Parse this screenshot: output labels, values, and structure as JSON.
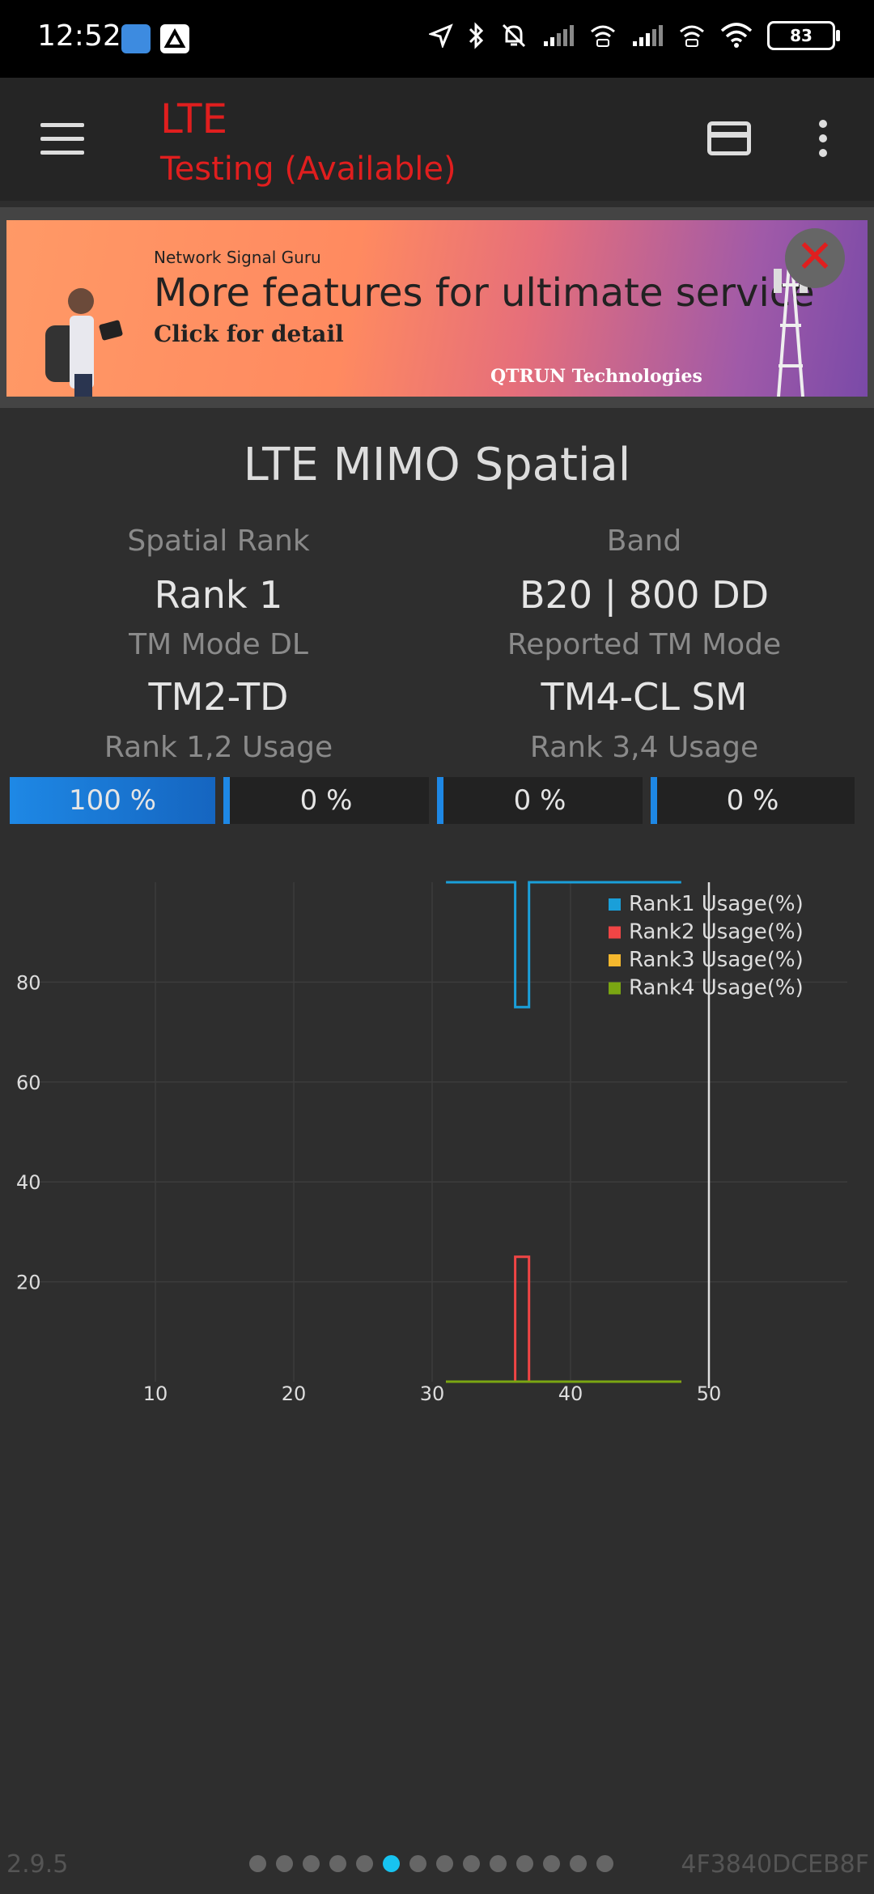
{
  "status_bar": {
    "time": "12:52",
    "battery": "83"
  },
  "app_bar": {
    "title": "LTE",
    "subtitle": "Testing (Available)"
  },
  "ad": {
    "brand": "Network Signal Guru",
    "headline": "More features for ultimate service",
    "cta": "Click for detail",
    "company": "QTRUN Technologies",
    "close": "✕"
  },
  "panel": {
    "title": "LTE MIMO Spatial",
    "spatial_rank_label": "Spatial Rank",
    "spatial_rank_value": "Rank 1",
    "band_label": "Band",
    "band_value": "B20 | 800 DD",
    "tm_mode_dl_label": "TM Mode DL",
    "tm_mode_dl_value": "TM2-TD",
    "reported_tm_label": "Reported TM Mode",
    "reported_tm_value": "TM4-CL SM",
    "rank12_label": "Rank 1,2 Usage",
    "rank34_label": "Rank 3,4 Usage"
  },
  "usage_bars": [
    {
      "text": "100 %",
      "value": 100
    },
    {
      "text": "0 %",
      "value": 0
    },
    {
      "text": "0 %",
      "value": 0
    },
    {
      "text": "0 %",
      "value": 0
    }
  ],
  "chart_data": {
    "type": "line",
    "x_ticks": [
      10,
      20,
      30,
      40,
      50
    ],
    "y_ticks": [
      20,
      40,
      60,
      80
    ],
    "xlim": [
      0,
      60
    ],
    "ylim": [
      0,
      100
    ],
    "grid": true,
    "legend_position": "top-right",
    "cursor_x": 50,
    "series": [
      {
        "name": "Rank1 Usage(%)",
        "color": "#1a9fd9",
        "points": [
          [
            31,
            100
          ],
          [
            36,
            100
          ],
          [
            36,
            75
          ],
          [
            37,
            75
          ],
          [
            37,
            100
          ],
          [
            48,
            100
          ]
        ]
      },
      {
        "name": "Rank2 Usage(%)",
        "color": "#f04545",
        "points": [
          [
            31,
            0
          ],
          [
            36,
            0
          ],
          [
            36,
            25
          ],
          [
            37,
            25
          ],
          [
            37,
            0
          ],
          [
            48,
            0
          ]
        ]
      },
      {
        "name": "Rank3 Usage(%)",
        "color": "#f5b82e",
        "points": [
          [
            31,
            0
          ],
          [
            48,
            0
          ]
        ]
      },
      {
        "name": "Rank4 Usage(%)",
        "color": "#7aa612",
        "points": [
          [
            31,
            0
          ],
          [
            48,
            0
          ]
        ]
      }
    ]
  },
  "pager": {
    "count": 14,
    "active_index": 5
  },
  "footer": {
    "version": "2.9.5",
    "device_id": "4F3840DCEB8F"
  }
}
